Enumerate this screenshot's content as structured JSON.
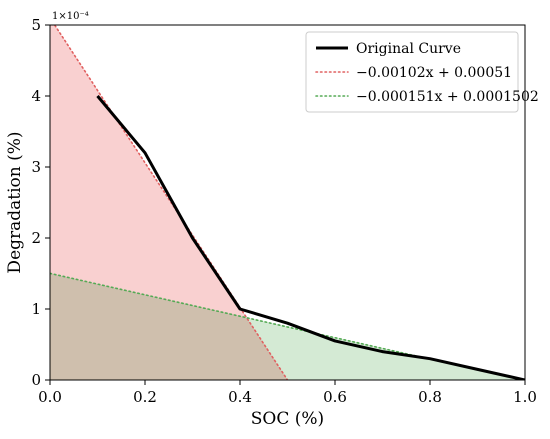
{
  "chart_data": {
    "type": "line",
    "xlabel": "SOC (%)",
    "ylabel": "Degradation (%)",
    "y_multiplier": "1×10⁻⁴",
    "xlim": [
      0.0,
      1.0
    ],
    "ylim": [
      0,
      5
    ],
    "x_ticks": [
      0.0,
      0.2,
      0.4,
      0.6,
      0.8,
      1.0
    ],
    "x_tick_labels": [
      "0.0",
      "0.2",
      "0.4",
      "0.6",
      "0.8",
      "1.0"
    ],
    "y_ticks": [
      0,
      1,
      2,
      3,
      4,
      5
    ],
    "y_tick_labels": [
      "0",
      "1",
      "2",
      "3",
      "4",
      "5"
    ],
    "legend_position": "top-right",
    "grid": false,
    "series": [
      {
        "name": "Original Curve",
        "style": "solid",
        "color": "#000000",
        "x": [
          0.1,
          0.2,
          0.3,
          0.4,
          0.5,
          0.6,
          0.7,
          0.8,
          0.9,
          1.0
        ],
        "y": [
          4.0,
          3.2,
          2.0,
          1.0,
          0.8,
          0.55,
          0.4,
          0.3,
          0.15,
          0.0
        ]
      },
      {
        "name": "−0.00102x + 0.00051",
        "style": "dotted",
        "color": "#e06060",
        "fill": "#f8c8c8",
        "x": [
          0.0,
          0.5
        ],
        "y": [
          5.1,
          0.0
        ]
      },
      {
        "name": "−0.000151x + 0.0001502",
        "style": "dotted",
        "color": "#55aa55",
        "fill": "#cce6cc",
        "x": [
          0.0,
          1.0
        ],
        "y": [
          1.502,
          -0.008
        ]
      }
    ]
  }
}
